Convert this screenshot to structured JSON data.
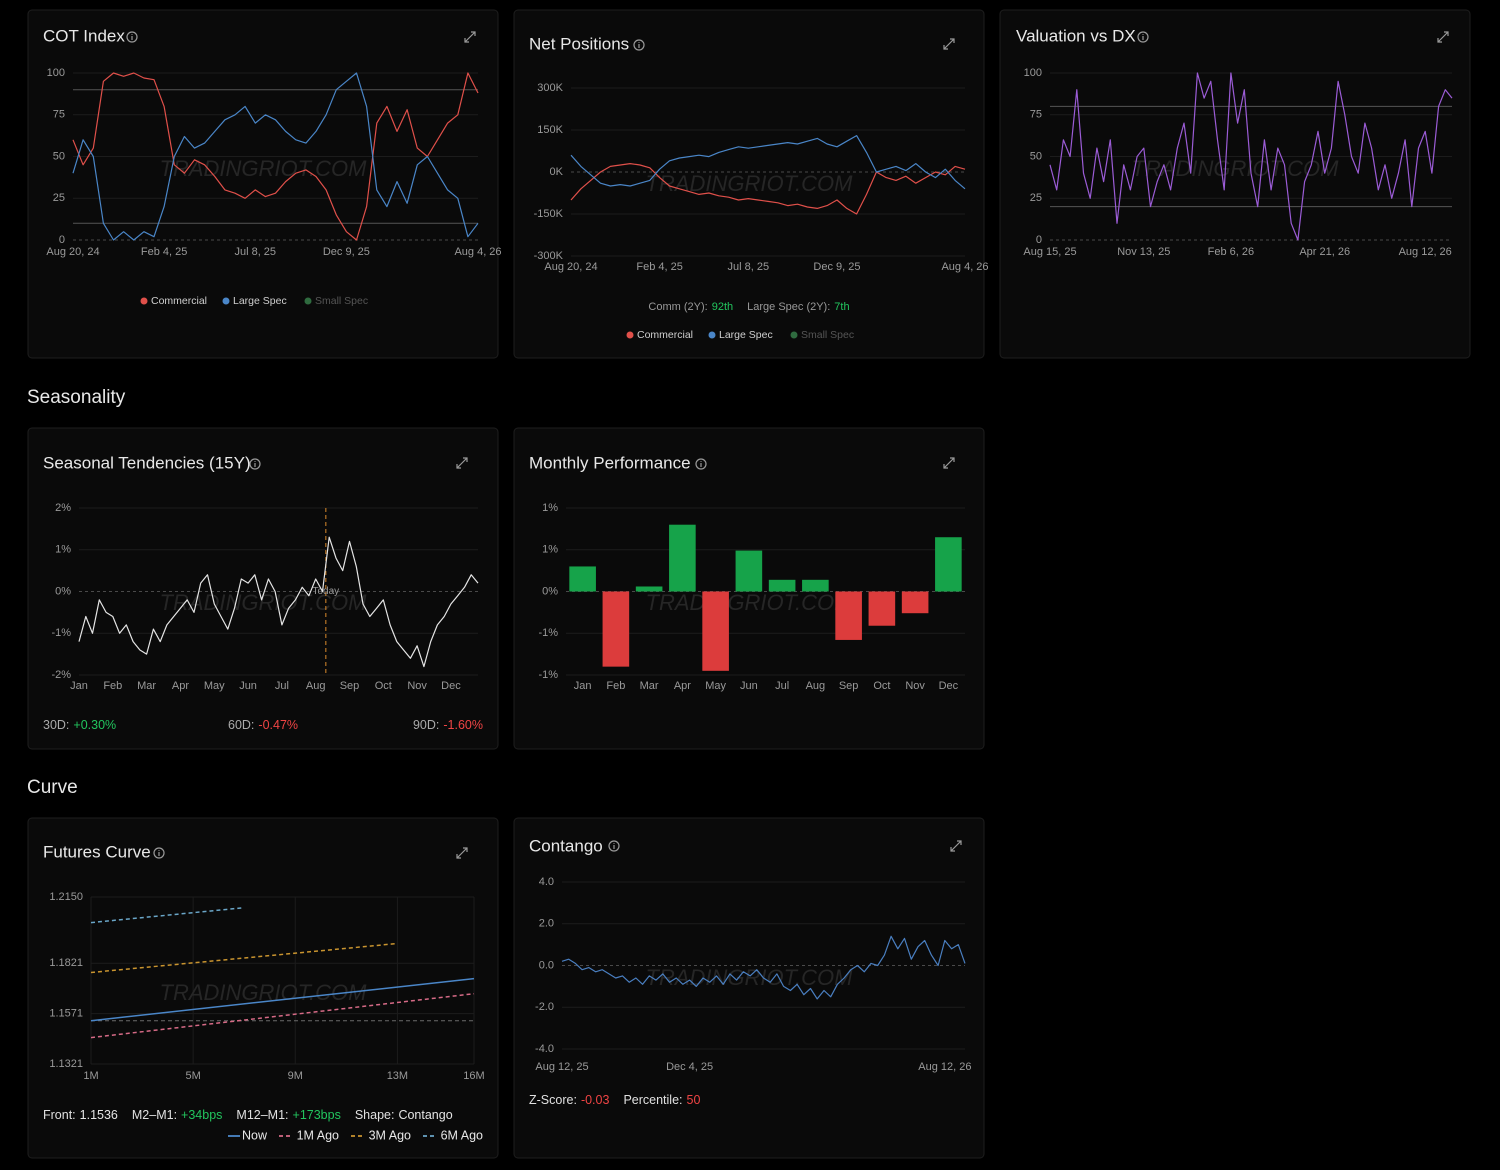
{
  "sections": [
    "Seasonality",
    "Curve"
  ],
  "chart_data": [
    {
      "type": "line",
      "title": "COT Index",
      "watermark": "TRADINGRIOT.COM",
      "categories": [
        "Aug 20, 24",
        null,
        null,
        null,
        null,
        null,
        null,
        null,
        null,
        "Feb 4, 25",
        null,
        null,
        null,
        null,
        null,
        null,
        null,
        null,
        "Jul 8, 25",
        null,
        null,
        null,
        null,
        null,
        null,
        null,
        null,
        "Dec 9, 25",
        null,
        null,
        null,
        null,
        null,
        null,
        null,
        null,
        null,
        null,
        null,
        null,
        "Aug 4, 26"
      ],
      "series": [
        {
          "name": "Commercial",
          "color": "#e0504a",
          "values": [
            60,
            45,
            55,
            95,
            100,
            98,
            100,
            97,
            96,
            80,
            45,
            40,
            48,
            45,
            38,
            30,
            28,
            25,
            30,
            26,
            28,
            35,
            40,
            42,
            38,
            30,
            15,
            5,
            0,
            20,
            70,
            80,
            65,
            78,
            55,
            50,
            60,
            70,
            75,
            100,
            88
          ]
        },
        {
          "name": "Large Spec",
          "color": "#4a86c8",
          "values": [
            40,
            60,
            50,
            10,
            0,
            5,
            0,
            5,
            2,
            20,
            50,
            62,
            55,
            58,
            65,
            72,
            75,
            80,
            70,
            75,
            72,
            65,
            60,
            58,
            65,
            75,
            90,
            95,
            100,
            80,
            30,
            20,
            35,
            22,
            45,
            50,
            40,
            30,
            25,
            2,
            10
          ]
        },
        {
          "name": "Small Spec",
          "color": "#2f6b3f"
        }
      ],
      "ylim": [
        0,
        100
      ],
      "yticks": [
        0,
        25,
        50,
        75,
        100
      ],
      "reference_lines": [
        90,
        10
      ],
      "grid": true
    },
    {
      "type": "line",
      "title": "Net Positions",
      "watermark": "TRADINGRIOT.COM",
      "categories": [
        "Aug 20, 24",
        null,
        null,
        null,
        null,
        null,
        null,
        null,
        null,
        "Feb 4, 25",
        null,
        null,
        null,
        null,
        null,
        null,
        null,
        null,
        "Jul 8, 25",
        null,
        null,
        null,
        null,
        null,
        null,
        null,
        null,
        "Dec 9, 25",
        null,
        null,
        null,
        null,
        null,
        null,
        null,
        null,
        null,
        null,
        null,
        null,
        "Aug 4, 26"
      ],
      "series": [
        {
          "name": "Commercial",
          "color": "#e0504a",
          "values": [
            -100000,
            -60000,
            -30000,
            0,
            20000,
            25000,
            30000,
            25000,
            15000,
            -20000,
            -50000,
            -60000,
            -70000,
            -80000,
            -75000,
            -85000,
            -90000,
            -100000,
            -95000,
            -100000,
            -105000,
            -110000,
            -120000,
            -115000,
            -125000,
            -130000,
            -120000,
            -100000,
            -130000,
            -150000,
            -80000,
            0,
            -20000,
            -30000,
            -15000,
            -40000,
            -20000,
            0,
            -10000,
            20000,
            10000
          ]
        },
        {
          "name": "Large Spec",
          "color": "#4a86c8",
          "values": [
            60000,
            20000,
            -10000,
            -40000,
            -50000,
            -45000,
            -50000,
            -40000,
            -30000,
            10000,
            40000,
            50000,
            55000,
            60000,
            55000,
            70000,
            80000,
            90000,
            85000,
            90000,
            95000,
            100000,
            105000,
            100000,
            110000,
            120000,
            100000,
            90000,
            110000,
            130000,
            70000,
            0,
            10000,
            20000,
            5000,
            30000,
            0,
            -20000,
            10000,
            -30000,
            -60000
          ]
        },
        {
          "name": "Small Spec",
          "color": "#2f6b3f"
        }
      ],
      "ylim": [
        -300000,
        300000
      ],
      "yticks": [
        {
          "value": 300000,
          "label": "300K"
        },
        {
          "value": 150000,
          "label": "150K"
        },
        {
          "value": 0,
          "label": "0K"
        },
        {
          "value": -150000,
          "label": "-150K"
        },
        {
          "value": -300000,
          "label": "-300K"
        }
      ],
      "stats": [
        {
          "label": "Comm (2Y):",
          "value": "92th",
          "color": "#22c55e"
        },
        {
          "label": "Large Spec (2Y):",
          "value": "7th",
          "color": "#22c55e"
        }
      ],
      "grid": true
    },
    {
      "type": "line",
      "title": "Valuation vs DX",
      "watermark": "TRADINGRIOT.COM",
      "categories": [
        "Aug 15, 25",
        null,
        null,
        null,
        null,
        null,
        null,
        null,
        null,
        null,
        null,
        null,
        null,
        null,
        "Nov 13, 25",
        null,
        null,
        null,
        null,
        null,
        null,
        null,
        null,
        null,
        null,
        null,
        null,
        "Feb 6, 26",
        null,
        null,
        null,
        null,
        null,
        null,
        null,
        null,
        null,
        null,
        null,
        null,
        null,
        "Apr 21, 26",
        null,
        null,
        null,
        null,
        null,
        null,
        null,
        null,
        null,
        null,
        null,
        null,
        null,
        null,
        "Aug 12, 26",
        null,
        null,
        null,
        null
      ],
      "series": [
        {
          "name": "Valuation",
          "color": "#9b5cd6",
          "values": [
            45,
            30,
            60,
            50,
            90,
            40,
            25,
            55,
            35,
            60,
            10,
            45,
            30,
            50,
            55,
            20,
            35,
            45,
            30,
            55,
            70,
            40,
            100,
            85,
            95,
            60,
            30,
            100,
            70,
            90,
            40,
            20,
            60,
            30,
            55,
            45,
            10,
            0,
            35,
            45,
            65,
            40,
            55,
            95,
            75,
            50,
            40,
            70,
            55,
            30,
            45,
            25,
            40,
            60,
            20,
            55,
            65,
            40,
            80,
            90,
            85
          ]
        }
      ],
      "ylim": [
        0,
        100
      ],
      "yticks": [
        0,
        25,
        50,
        75,
        100
      ],
      "reference_lines": [
        80,
        20
      ],
      "grid": true
    },
    {
      "type": "line",
      "title": "Seasonal Tendencies (15Y)",
      "watermark": "TRADINGRIOT.COM",
      "categories": [
        "Jan",
        null,
        null,
        null,
        null,
        "Feb",
        null,
        null,
        null,
        null,
        "Mar",
        null,
        null,
        null,
        null,
        "Apr",
        null,
        null,
        null,
        null,
        "May",
        null,
        null,
        null,
        null,
        "Jun",
        null,
        null,
        null,
        null,
        "Jul",
        null,
        null,
        null,
        null,
        "Aug",
        null,
        null,
        null,
        null,
        "Sep",
        null,
        null,
        null,
        null,
        "Oct",
        null,
        null,
        null,
        null,
        "Nov",
        null,
        null,
        null,
        null,
        "Dec",
        null,
        null,
        null,
        null
      ],
      "series": [
        {
          "name": "Seasonal",
          "color": "#e5e5e5",
          "values": [
            -1.2,
            -0.6,
            -1.0,
            -0.2,
            -0.5,
            -0.6,
            -1.0,
            -0.8,
            -1.2,
            -1.4,
            -1.5,
            -0.9,
            -1.2,
            -0.8,
            -0.6,
            -0.4,
            -0.2,
            -0.5,
            0.2,
            0.4,
            -0.3,
            -0.6,
            -0.9,
            -0.4,
            0.3,
            0.2,
            0.4,
            -0.2,
            0.3,
            0.0,
            -0.8,
            -0.4,
            -0.2,
            0.1,
            -0.1,
            0.3,
            0.0,
            1.3,
            0.8,
            0.5,
            1.2,
            0.6,
            -0.3,
            -0.6,
            -0.4,
            -0.2,
            -0.8,
            -1.2,
            -1.4,
            -1.6,
            -1.3,
            -1.8,
            -1.2,
            -0.8,
            -0.6,
            -0.3,
            -0.1,
            0.1,
            0.4,
            0.2
          ]
        }
      ],
      "ylim": [
        -2,
        2
      ],
      "yticks": [
        {
          "value": 2,
          "label": "2%"
        },
        {
          "value": 1,
          "label": "1%"
        },
        {
          "value": 0,
          "label": "0%"
        },
        {
          "value": -1,
          "label": "-1%"
        },
        {
          "value": -2,
          "label": "-2%"
        }
      ],
      "annotation": {
        "label": "Today",
        "x": 36.5,
        "color": "#d98a2b"
      },
      "stats": [
        {
          "label": "30D:",
          "value": "+0.30%",
          "color": "#22c55e"
        },
        {
          "label": "60D:",
          "value": "-0.47%",
          "color": "#ef4444"
        },
        {
          "label": "90D:",
          "value": "-1.60%",
          "color": "#ef4444"
        }
      ],
      "grid": true
    },
    {
      "type": "bar",
      "title": "Monthly Performance",
      "watermark": "TRADINGRIOT.COM",
      "categories": [
        "Jan",
        "Feb",
        "Mar",
        "Apr",
        "May",
        "Jun",
        "Jul",
        "Aug",
        "Sep",
        "Oct",
        "Nov",
        "Dec"
      ],
      "values": [
        0.3,
        -0.9,
        0.06,
        0.8,
        -0.95,
        0.49,
        0.14,
        0.14,
        -0.58,
        -0.41,
        -0.26,
        0.65
      ],
      "positive_color": "#16a34a",
      "negative_color": "#dc3c3c",
      "ylim": [
        -1,
        1
      ],
      "yticks": [
        {
          "value": 1,
          "label": "1%"
        },
        {
          "value": 0.5,
          "label": "1%"
        },
        {
          "value": 0,
          "label": "0%"
        },
        {
          "value": -0.5,
          "label": "-1%"
        },
        {
          "value": -1,
          "label": "-1%"
        }
      ],
      "grid": true
    },
    {
      "type": "line",
      "title": "Futures Curve",
      "watermark": "TRADINGRIOT.COM",
      "series": [
        {
          "name": "Now",
          "color": "#4a86c8",
          "dash": "solid",
          "x": [
            1,
            16
          ],
          "values": [
            1.1536,
            1.1745
          ]
        },
        {
          "name": "1M Ago",
          "color": "#d66a86",
          "dash": "dashed",
          "x": [
            1,
            16
          ],
          "values": [
            1.1452,
            1.167
          ]
        },
        {
          "name": "3M Ago",
          "color": "#c9942f",
          "dash": "dashed",
          "x": [
            1,
            13
          ],
          "values": [
            1.1775,
            1.1919
          ]
        },
        {
          "name": "6M Ago",
          "color": "#6aa6c8",
          "dash": "dashed",
          "x": [
            1,
            7
          ],
          "values": [
            1.2023,
            1.2097
          ]
        }
      ],
      "xlim": [
        1,
        16
      ],
      "xticks": [
        {
          "value": 1,
          "label": "1M"
        },
        {
          "value": 5,
          "label": "5M"
        },
        {
          "value": 9,
          "label": "9M"
        },
        {
          "value": 13,
          "label": "13M"
        },
        {
          "value": 16,
          "label": "16M"
        }
      ],
      "ylim": [
        1.1321,
        1.215
      ],
      "yticks": [
        {
          "value": 1.215,
          "label": "1.2150"
        },
        1.1821,
        1.1571,
        1.1321
      ],
      "reference_lines": [
        1.1536
      ],
      "reference_dash": true,
      "stats": [
        {
          "label": "Front:",
          "value": "1.1536",
          "color": "#e5e5e5"
        },
        {
          "label": "M2–M1:",
          "value": "+34bps",
          "color": "#22c55e"
        },
        {
          "label": "M12–M1:",
          "value": "+173bps",
          "color": "#22c55e"
        },
        {
          "label": "Shape:",
          "value": "Contango",
          "color": "#e5e5e5"
        }
      ],
      "grid": true
    },
    {
      "type": "line",
      "title": "Contango",
      "watermark": "TRADINGRIOT.COM",
      "categories": [
        "Aug 12, 25",
        null,
        null,
        null,
        null,
        null,
        null,
        null,
        null,
        null,
        null,
        null,
        null,
        null,
        null,
        null,
        null,
        null,
        null,
        "Dec 4, 25",
        null,
        null,
        null,
        null,
        null,
        null,
        null,
        null,
        null,
        null,
        null,
        null,
        null,
        null,
        null,
        null,
        null,
        null,
        null,
        null,
        null,
        null,
        null,
        null,
        null,
        null,
        null,
        null,
        null,
        null,
        null,
        null,
        null,
        null,
        null,
        null,
        null,
        "Aug 12, 26",
        null,
        null,
        null
      ],
      "series": [
        {
          "name": "Contango",
          "color": "#4a7fc1",
          "values": [
            0.2,
            0.3,
            0.1,
            -0.2,
            -0.1,
            -0.3,
            -0.2,
            -0.4,
            -0.6,
            -0.5,
            -0.8,
            -0.6,
            -0.9,
            -0.5,
            -0.7,
            -0.4,
            -0.8,
            -0.6,
            -0.9,
            -0.7,
            -1.0,
            -0.6,
            -0.8,
            -0.5,
            -0.9,
            -0.4,
            -0.7,
            -0.3,
            -0.5,
            -0.2,
            -0.6,
            -0.8,
            -0.4,
            -1.0,
            -1.2,
            -0.9,
            -1.4,
            -1.1,
            -1.6,
            -1.2,
            -1.5,
            -0.9,
            -0.6,
            -0.2,
            0.0,
            -0.3,
            0.1,
            0.0,
            0.5,
            1.4,
            0.8,
            1.3,
            0.3,
            0.9,
            1.2,
            0.5,
            0.0,
            1.2,
            0.8,
            1.0,
            0.1
          ]
        }
      ],
      "ylim": [
        -4,
        4
      ],
      "yticks": [
        {
          "value": 4,
          "label": "4.0"
        },
        {
          "value": 2,
          "label": "2.0"
        },
        {
          "value": 0,
          "label": "0.0"
        },
        {
          "value": -2,
          "label": "-2.0"
        },
        {
          "value": -4,
          "label": "-4.0"
        }
      ],
      "stats": [
        {
          "label": "Z-Score:",
          "value": "-0.03",
          "color": "#ef4444"
        },
        {
          "label": "Percentile:",
          "value": "50",
          "color": "#ef4444"
        }
      ],
      "grid": true
    }
  ]
}
